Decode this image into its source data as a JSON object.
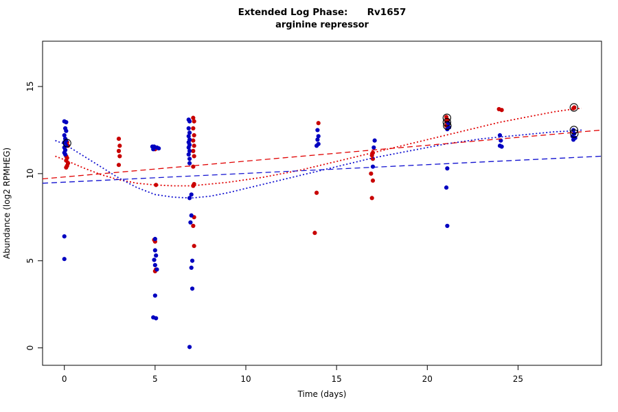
{
  "title": "Extended Log Phase:      Rv1657",
  "subtitle": "arginine repressor",
  "chart_data": {
    "type": "scatter",
    "xlabel": "Time  (days)",
    "ylabel": "Abundance  (log2 RPMHEG)",
    "xlim": [
      -1.2,
      29.6
    ],
    "ylim": [
      -1.0,
      17.6
    ],
    "xticks": [
      0,
      5,
      10,
      15,
      20,
      25
    ],
    "yticks": [
      0,
      5,
      10,
      15
    ],
    "legend": "none",
    "grid": false,
    "colors": {
      "red": "#c80000",
      "blue": "#0000c0",
      "ring": "#000000"
    },
    "series": [
      {
        "name": "red-points",
        "type": "points",
        "color": "#c80000",
        "points": [
          [
            0.15,
            11.8
          ],
          [
            0.2,
            11.6
          ],
          [
            0.1,
            11.0
          ],
          [
            0.15,
            10.9
          ],
          [
            0.1,
            10.75
          ],
          [
            0.2,
            10.6
          ],
          [
            0.15,
            10.45
          ],
          [
            0.1,
            10.35
          ],
          [
            3.0,
            12.0
          ],
          [
            3.05,
            11.6
          ],
          [
            3.0,
            11.3
          ],
          [
            3.05,
            11.0
          ],
          [
            3.0,
            10.5
          ],
          [
            5.0,
            11.4
          ],
          [
            5.05,
            9.35
          ],
          [
            4.95,
            6.2
          ],
          [
            5.0,
            6.1
          ],
          [
            5.05,
            4.5
          ],
          [
            5.0,
            4.4
          ],
          [
            7.1,
            13.2
          ],
          [
            7.15,
            13.0
          ],
          [
            7.1,
            12.6
          ],
          [
            7.15,
            12.2
          ],
          [
            7.1,
            11.9
          ],
          [
            7.15,
            11.6
          ],
          [
            7.1,
            11.3
          ],
          [
            7.15,
            11.0
          ],
          [
            7.1,
            10.4
          ],
          [
            7.15,
            9.4
          ],
          [
            7.1,
            9.3
          ],
          [
            7.15,
            7.5
          ],
          [
            7.1,
            7.0
          ],
          [
            7.15,
            5.85
          ],
          [
            14.0,
            12.9
          ],
          [
            13.9,
            8.9
          ],
          [
            13.8,
            6.6
          ],
          [
            17.0,
            11.2
          ],
          [
            16.95,
            11.05
          ],
          [
            17.0,
            10.85
          ],
          [
            16.9,
            10.0
          ],
          [
            17.0,
            9.6
          ],
          [
            16.95,
            8.6
          ],
          [
            21.05,
            13.25
          ],
          [
            21.1,
            13.1
          ],
          [
            21.05,
            13.0
          ],
          [
            21.1,
            12.85
          ],
          [
            21.05,
            12.75
          ],
          [
            23.95,
            13.7
          ],
          [
            24.1,
            13.65
          ],
          [
            28.1,
            13.8
          ],
          [
            28.05,
            13.75
          ]
        ]
      },
      {
        "name": "blue-points",
        "type": "points",
        "color": "#0000c0",
        "points": [
          [
            0.0,
            13.0
          ],
          [
            0.1,
            12.95
          ],
          [
            0.05,
            12.6
          ],
          [
            0.1,
            12.45
          ],
          [
            0.0,
            12.2
          ],
          [
            0.05,
            12.0
          ],
          [
            0.1,
            11.9
          ],
          [
            0.0,
            11.8
          ],
          [
            0.05,
            11.7
          ],
          [
            0.1,
            11.6
          ],
          [
            0.0,
            11.5
          ],
          [
            0.05,
            11.35
          ],
          [
            0.0,
            11.2
          ],
          [
            0.05,
            11.1
          ],
          [
            0.0,
            6.4
          ],
          [
            0.0,
            5.1
          ],
          [
            4.85,
            11.55
          ],
          [
            4.95,
            11.55
          ],
          [
            5.1,
            11.5
          ],
          [
            5.2,
            11.45
          ],
          [
            4.9,
            11.4
          ],
          [
            5.0,
            6.25
          ],
          [
            5.0,
            5.6
          ],
          [
            5.05,
            5.3
          ],
          [
            4.95,
            5.05
          ],
          [
            5.0,
            4.75
          ],
          [
            5.1,
            4.5
          ],
          [
            5.0,
            3.0
          ],
          [
            4.9,
            1.75
          ],
          [
            5.05,
            1.7
          ],
          [
            6.85,
            13.1
          ],
          [
            6.9,
            13.0
          ],
          [
            6.85,
            12.6
          ],
          [
            6.9,
            12.35
          ],
          [
            6.85,
            12.15
          ],
          [
            6.9,
            11.95
          ],
          [
            6.85,
            11.8
          ],
          [
            6.9,
            11.65
          ],
          [
            6.85,
            11.5
          ],
          [
            6.9,
            11.3
          ],
          [
            6.85,
            11.1
          ],
          [
            6.9,
            10.85
          ],
          [
            6.9,
            10.6
          ],
          [
            7.0,
            8.8
          ],
          [
            6.9,
            8.6
          ],
          [
            7.0,
            7.6
          ],
          [
            6.95,
            7.2
          ],
          [
            7.05,
            5.0
          ],
          [
            7.0,
            4.6
          ],
          [
            7.05,
            3.4
          ],
          [
            6.9,
            0.05
          ],
          [
            13.95,
            12.5
          ],
          [
            14.0,
            12.15
          ],
          [
            13.95,
            11.95
          ],
          [
            14.0,
            11.7
          ],
          [
            13.9,
            11.6
          ],
          [
            17.1,
            11.9
          ],
          [
            17.05,
            11.5
          ],
          [
            17.0,
            10.4
          ],
          [
            21.15,
            12.9
          ],
          [
            21.2,
            12.65
          ],
          [
            21.1,
            12.55
          ],
          [
            21.1,
            10.3
          ],
          [
            21.05,
            9.2
          ],
          [
            21.1,
            7.0
          ],
          [
            24.0,
            12.2
          ],
          [
            24.05,
            11.9
          ],
          [
            24.0,
            11.6
          ],
          [
            24.1,
            11.55
          ],
          [
            28.05,
            12.5
          ],
          [
            28.1,
            12.3
          ],
          [
            28.0,
            12.15
          ],
          [
            28.15,
            12.05
          ],
          [
            28.05,
            11.95
          ]
        ]
      },
      {
        "name": "red-smooth",
        "type": "line",
        "style": "dotted",
        "color": "#e00000",
        "points": [
          [
            -0.5,
            11.0
          ],
          [
            0,
            10.8
          ],
          [
            1,
            10.35
          ],
          [
            2,
            9.95
          ],
          [
            3,
            9.65
          ],
          [
            4,
            9.45
          ],
          [
            5,
            9.35
          ],
          [
            6,
            9.3
          ],
          [
            7,
            9.3
          ],
          [
            8,
            9.4
          ],
          [
            9,
            9.5
          ],
          [
            10,
            9.65
          ],
          [
            11,
            9.8
          ],
          [
            12,
            10.0
          ],
          [
            13,
            10.2
          ],
          [
            14,
            10.45
          ],
          [
            15,
            10.7
          ],
          [
            16,
            10.95
          ],
          [
            17,
            11.2
          ],
          [
            18,
            11.45
          ],
          [
            19,
            11.7
          ],
          [
            20,
            11.95
          ],
          [
            21,
            12.2
          ],
          [
            22,
            12.45
          ],
          [
            23,
            12.7
          ],
          [
            24,
            12.95
          ],
          [
            25,
            13.15
          ],
          [
            26,
            13.35
          ],
          [
            27,
            13.55
          ],
          [
            28,
            13.7
          ],
          [
            28.5,
            13.75
          ]
        ]
      },
      {
        "name": "blue-smooth",
        "type": "line",
        "style": "dotted",
        "color": "#1010d0",
        "points": [
          [
            -0.5,
            11.9
          ],
          [
            0,
            11.7
          ],
          [
            1,
            11.05
          ],
          [
            2,
            10.4
          ],
          [
            3,
            9.75
          ],
          [
            4,
            9.2
          ],
          [
            5,
            8.8
          ],
          [
            6,
            8.65
          ],
          [
            7,
            8.6
          ],
          [
            8,
            8.7
          ],
          [
            9,
            8.9
          ],
          [
            10,
            9.15
          ],
          [
            11,
            9.4
          ],
          [
            12,
            9.65
          ],
          [
            13,
            9.9
          ],
          [
            14,
            10.15
          ],
          [
            15,
            10.4
          ],
          [
            16,
            10.65
          ],
          [
            17,
            10.9
          ],
          [
            18,
            11.1
          ],
          [
            19,
            11.3
          ],
          [
            20,
            11.5
          ],
          [
            21,
            11.7
          ],
          [
            22,
            11.85
          ],
          [
            23,
            12.0
          ],
          [
            24,
            12.1
          ],
          [
            25,
            12.2
          ],
          [
            26,
            12.3
          ],
          [
            27,
            12.4
          ],
          [
            28,
            12.45
          ],
          [
            28.5,
            12.5
          ]
        ]
      },
      {
        "name": "red-linear",
        "type": "line",
        "style": "dashed",
        "color": "#e00000",
        "points": [
          [
            -1.2,
            9.7
          ],
          [
            29.6,
            12.5
          ]
        ]
      },
      {
        "name": "blue-linear",
        "type": "line",
        "style": "dashed",
        "color": "#1010d0",
        "points": [
          [
            -1.2,
            9.45
          ],
          [
            29.6,
            11.0
          ]
        ]
      }
    ],
    "circled_points": [
      [
        0.15,
        11.75
      ],
      [
        21.08,
        13.2
      ],
      [
        21.08,
        12.95
      ],
      [
        21.1,
        12.75
      ],
      [
        28.08,
        13.8
      ],
      [
        28.08,
        12.5
      ],
      [
        28.1,
        12.3
      ]
    ]
  }
}
